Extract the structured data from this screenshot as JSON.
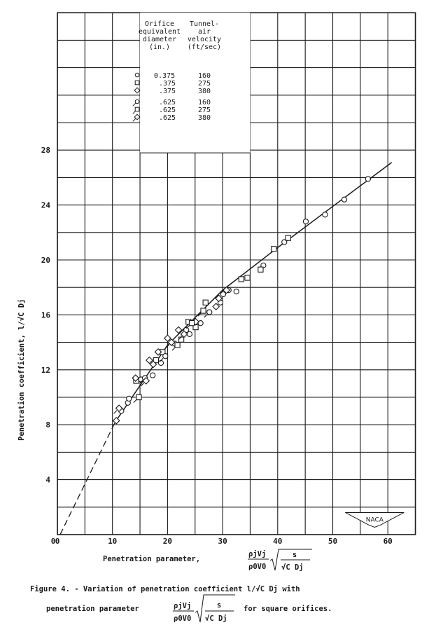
{
  "chart_data": {
    "type": "scatter",
    "title": "",
    "xlabel": "Penetration parameter, (ρj Vj / ρ0 V0) √(s / (√C Dj))",
    "ylabel": "Penetration coefficient, l/√C Dj",
    "xlim": [
      0,
      65
    ],
    "ylim": [
      0,
      38
    ],
    "x_ticks": [
      0,
      10,
      20,
      30,
      40,
      50,
      60
    ],
    "y_ticks": [
      4,
      8,
      12,
      16,
      20,
      24,
      28
    ],
    "grid": true,
    "grid_x_step": 5,
    "grid_y_step": 2,
    "legend": {
      "position": "upper-left inside",
      "col1_header": [
        "Orifice",
        "equivalent",
        "diameter",
        "(in.)"
      ],
      "col2_header": [
        "Tunnel-",
        "air",
        "velocity",
        "(ft/sec)"
      ],
      "entries": [
        {
          "marker": "circle",
          "flag": false,
          "diameter": "0.375",
          "velocity": "160"
        },
        {
          "marker": "square",
          "flag": false,
          "diameter": ".375",
          "velocity": "275"
        },
        {
          "marker": "diamond",
          "flag": false,
          "diameter": ".375",
          "velocity": "380"
        },
        {
          "marker": "circle",
          "flag": true,
          "diameter": ".625",
          "velocity": "160"
        },
        {
          "marker": "square",
          "flag": true,
          "diameter": ".625",
          "velocity": "275"
        },
        {
          "marker": "diamond",
          "flag": true,
          "diameter": ".625",
          "velocity": "380"
        }
      ]
    },
    "series": [
      {
        "name": "0.375 in., 160 ft/sec",
        "marker": "circle",
        "flag": false,
        "x": [
          11.6,
          12.8,
          13.0,
          15.2,
          17.3,
          18.8,
          21.3,
          24.0,
          26.0,
          29.6,
          30.1,
          31.1,
          32.5,
          37.4,
          41.2,
          45.1,
          48.6,
          52.1,
          56.4
        ],
        "y": [
          9.0,
          9.6,
          9.9,
          11.3,
          11.6,
          12.5,
          13.9,
          14.6,
          15.4,
          16.9,
          17.5,
          17.8,
          17.7,
          19.6,
          21.3,
          22.8,
          23.3,
          24.4,
          25.9
        ]
      },
      {
        "name": "0.375 in., 275 ft/sec",
        "marker": "square",
        "flag": false,
        "x": [
          14.3,
          17.9,
          19.1,
          22.5,
          23.8,
          25.1,
          26.9,
          33.4,
          34.5,
          36.9,
          39.3,
          41.9
        ],
        "y": [
          11.2,
          12.7,
          13.3,
          14.2,
          15.5,
          15.1,
          16.9,
          18.6,
          18.7,
          19.3,
          20.8,
          21.6
        ]
      },
      {
        "name": "0.375 in., 380 ft/sec",
        "marker": "diamond",
        "flag": false,
        "x": [
          10.7,
          14.2,
          16.7,
          17.4,
          18.3,
          20.0,
          22.0,
          25.1,
          28.8,
          29.3,
          30.7
        ],
        "y": [
          8.3,
          11.4,
          12.7,
          12.4,
          13.3,
          14.3,
          14.9,
          15.5,
          16.6,
          17.2,
          17.8
        ]
      },
      {
        "name": "0.625 in., 160 ft/sec",
        "marker": "circle",
        "flag": true,
        "x": [
          15.9,
          19.6,
          23.4,
          27.6
        ],
        "y": [
          11.4,
          13.0,
          14.9,
          16.2
        ]
      },
      {
        "name": "0.625 in., 275 ft/sec",
        "marker": "square",
        "flag": true,
        "x": [
          14.8,
          21.8,
          24.4,
          26.5
        ],
        "y": [
          10.0,
          13.8,
          15.4,
          16.3
        ]
      },
      {
        "name": "0.625 in., 380 ft/sec",
        "marker": "diamond",
        "flag": true,
        "x": [
          11.2,
          16.1,
          20.7,
          23.0
        ],
        "y": [
          9.2,
          11.2,
          14.0,
          14.6
        ]
      }
    ],
    "fit_line": {
      "solid": {
        "x": [
          10.5,
          20,
          30,
          40,
          50,
          60.7
        ],
        "y": [
          8.2,
          13.8,
          17.8,
          20.9,
          23.9,
          27.1
        ]
      },
      "dashed": {
        "x": [
          0.5,
          10.5
        ],
        "y": [
          0,
          8.2
        ]
      }
    },
    "annotations": [
      "NACA"
    ]
  },
  "labels": {
    "x_axis_prefix": "Penetration parameter,",
    "y_axis": "Penetration coefficient, l/√C Dj",
    "frac_num": "ρjVj",
    "frac_den": "ρ0V0",
    "sqrt_num": "s",
    "sqrt_den": "√C Dj",
    "naca_logo": "NACA"
  },
  "caption": {
    "line1": "Figure 4. - Variation of penetration coefficient  l/√C Dj  with",
    "line2_prefix": "penetration parameter",
    "line2_suffix": "for square orifices."
  }
}
